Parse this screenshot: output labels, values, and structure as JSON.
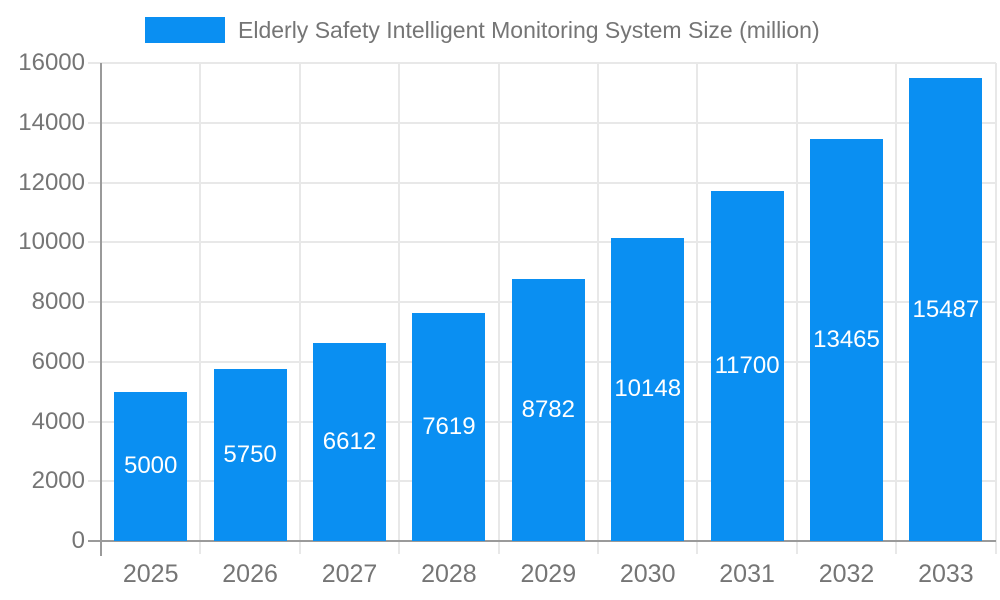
{
  "chart_data": {
    "type": "bar",
    "title": "Elderly Safety Intelligent Monitoring System Size (million)",
    "legend": "Elderly Safety Intelligent Monitoring System Size (million)",
    "legend_position": "top-left",
    "categories": [
      "2025",
      "2026",
      "2027",
      "2028",
      "2029",
      "2030",
      "2031",
      "2032",
      "2033"
    ],
    "values": [
      5000,
      5750,
      6612,
      7619,
      8782,
      10148,
      11700,
      13465,
      15487
    ],
    "value_labels": [
      "5000",
      "5750",
      "6612",
      "7619",
      "8782",
      "10148",
      "11700",
      "13465",
      "15487"
    ],
    "value_labels_shown": true,
    "xlabel": "",
    "ylabel": "",
    "ylim": [
      0,
      16000
    ],
    "y_ticks": [
      0,
      2000,
      4000,
      6000,
      8000,
      10000,
      12000,
      14000,
      16000
    ],
    "grid": true,
    "colors": {
      "bar": "#0a8ff2",
      "axis": "#9a9a9a",
      "grid": "#e8e8e8",
      "text": "#757575",
      "value_label": "#ffffff",
      "background": "#ffffff"
    }
  }
}
